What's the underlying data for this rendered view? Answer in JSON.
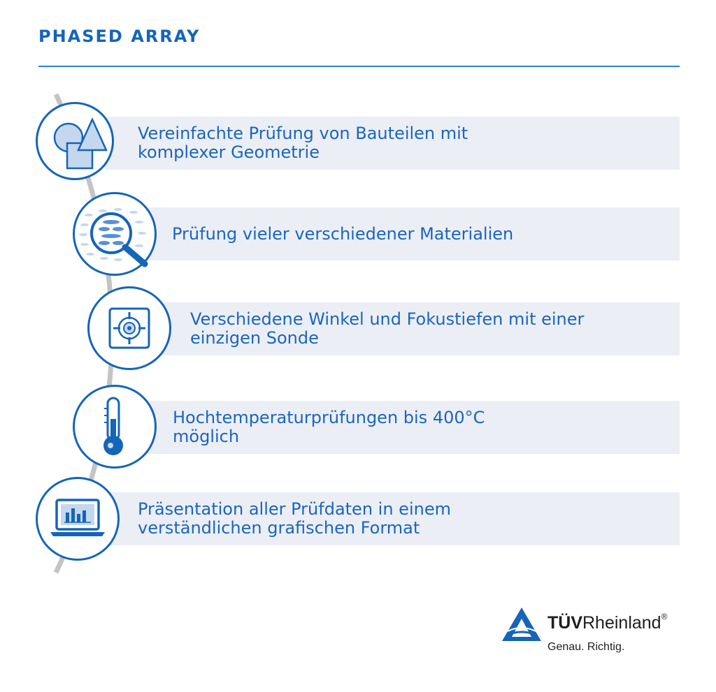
{
  "title": "PHASED ARRAY",
  "items": [
    {
      "icon": "shapes-icon",
      "text": "Vereinfachte Prüfung von Bauteilen mit\nkomplexer Geometrie"
    },
    {
      "icon": "magnifier-icon",
      "text": "Prüfung vieler verschiedener Materialien"
    },
    {
      "icon": "target-icon",
      "text": "Verschiedene Winkel und Fokustiefen mit einer\neinzigen Sonde"
    },
    {
      "icon": "thermometer-icon",
      "text": "Hochtemperaturprüfungen bis 400°C\nmöglich"
    },
    {
      "icon": "laptop-chart-icon",
      "text": "Präsentation aller Prüfdaten in einem\nverständlichen grafischen Format"
    }
  ],
  "logo": {
    "name_bold": "TÜV",
    "name_regular": "Rheinland",
    "registered": "®",
    "tagline": "Genau. Richtig."
  },
  "colors": {
    "primary": "#1565b8",
    "band": "#eceef6",
    "arc": "#c4c4c4",
    "icon_fill": "#c5d7ef"
  }
}
